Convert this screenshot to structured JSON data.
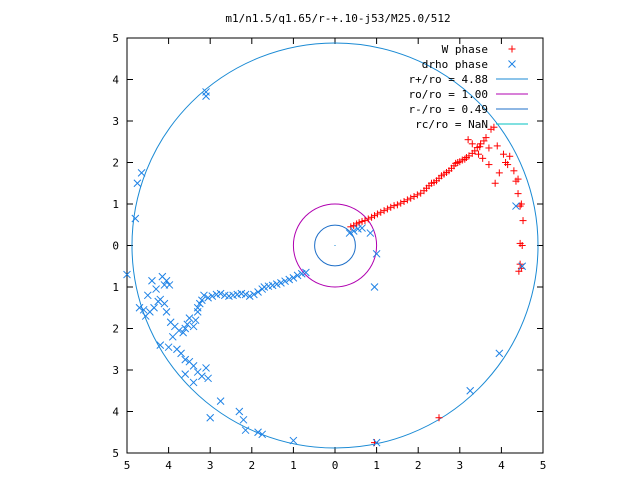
{
  "chart_data": {
    "type": "scatter",
    "title": "m1/n1.5/q1.65/r-+.10-j53/M25.0/512",
    "xlabel": "",
    "ylabel": "",
    "xlim": [
      -5,
      5
    ],
    "ylim": [
      -5,
      5
    ],
    "xtick_values": [
      -5,
      -4,
      -3,
      -2,
      -1,
      0,
      1,
      2,
      3,
      4,
      5
    ],
    "xtick_labels": [
      "5",
      "4",
      "3",
      "2",
      "1",
      "0",
      "1",
      "2",
      "3",
      "4",
      "5"
    ],
    "ytick_values": [
      5,
      4,
      3,
      2,
      1,
      0,
      -1,
      -2,
      -3,
      -4,
      -5
    ],
    "ytick_labels": [
      "5",
      "4",
      "3",
      "2",
      "1",
      "0",
      "1",
      "2",
      "3",
      "4",
      "5"
    ],
    "grid": false,
    "legend_position": "top-right",
    "series": [
      {
        "name": "W phase",
        "marker": "plus",
        "color": "#ff0000",
        "points": [
          [
            0.38,
            0.45
          ],
          [
            0.45,
            0.48
          ],
          [
            0.52,
            0.52
          ],
          [
            0.58,
            0.55
          ],
          [
            0.65,
            0.58
          ],
          [
            0.72,
            0.6
          ],
          [
            0.8,
            0.64
          ],
          [
            0.88,
            0.68
          ],
          [
            0.95,
            0.72
          ],
          [
            1.02,
            0.76
          ],
          [
            1.1,
            0.8
          ],
          [
            1.18,
            0.84
          ],
          [
            1.26,
            0.88
          ],
          [
            1.34,
            0.92
          ],
          [
            1.42,
            0.96
          ],
          [
            1.5,
            0.98
          ],
          [
            1.58,
            1.02
          ],
          [
            1.66,
            1.06
          ],
          [
            1.74,
            1.1
          ],
          [
            1.82,
            1.14
          ],
          [
            1.9,
            1.18
          ],
          [
            1.98,
            1.22
          ],
          [
            2.06,
            1.26
          ],
          [
            2.14,
            1.32
          ],
          [
            2.2,
            1.38
          ],
          [
            2.26,
            1.44
          ],
          [
            2.32,
            1.5
          ],
          [
            2.38,
            1.52
          ],
          [
            2.44,
            1.56
          ],
          [
            2.5,
            1.62
          ],
          [
            2.56,
            1.68
          ],
          [
            2.62,
            1.72
          ],
          [
            2.68,
            1.76
          ],
          [
            2.74,
            1.8
          ],
          [
            2.8,
            1.86
          ],
          [
            2.86,
            1.92
          ],
          [
            2.9,
            1.98
          ],
          [
            2.95,
            2.0
          ],
          [
            3.0,
            2.02
          ],
          [
            3.06,
            2.06
          ],
          [
            3.12,
            2.08
          ],
          [
            3.16,
            2.12
          ],
          [
            3.22,
            2.16
          ],
          [
            3.3,
            2.22
          ],
          [
            3.36,
            2.28
          ],
          [
            3.42,
            2.36
          ],
          [
            3.5,
            2.45
          ],
          [
            3.58,
            2.52
          ],
          [
            3.63,
            2.6
          ],
          [
            3.2,
            2.55
          ],
          [
            3.3,
            2.45
          ],
          [
            3.48,
            2.38
          ],
          [
            3.7,
            2.35
          ],
          [
            3.75,
            2.8
          ],
          [
            3.82,
            2.85
          ],
          [
            3.9,
            2.4
          ],
          [
            4.05,
            2.2
          ],
          [
            4.2,
            2.15
          ],
          [
            4.15,
            1.95
          ],
          [
            4.3,
            1.8
          ],
          [
            4.35,
            1.55
          ],
          [
            4.4,
            1.6
          ],
          [
            4.4,
            1.25
          ],
          [
            4.45,
            0.95
          ],
          [
            4.48,
            1.0
          ],
          [
            4.52,
            0.6
          ],
          [
            4.45,
            0.05
          ],
          [
            4.5,
            0.0
          ],
          [
            4.45,
            -0.45
          ],
          [
            4.48,
            -0.55
          ],
          [
            4.42,
            -0.62
          ],
          [
            3.85,
            1.5
          ],
          [
            3.95,
            1.75
          ],
          [
            4.1,
            2.0
          ],
          [
            3.7,
            1.95
          ],
          [
            3.55,
            2.1
          ],
          [
            3.45,
            2.2
          ],
          [
            2.5,
            -4.15
          ],
          [
            0.95,
            -4.75
          ]
        ]
      },
      {
        "name": "drho phase",
        "marker": "cross",
        "color": "#1e82e6",
        "points": [
          [
            0.35,
            0.3
          ],
          [
            0.45,
            0.35
          ],
          [
            0.55,
            0.4
          ],
          [
            0.65,
            0.42
          ],
          [
            0.85,
            0.3
          ],
          [
            -0.7,
            -0.65
          ],
          [
            -0.8,
            -0.68
          ],
          [
            -0.9,
            -0.72
          ],
          [
            -1.0,
            -0.78
          ],
          [
            -1.1,
            -0.82
          ],
          [
            -1.2,
            -0.86
          ],
          [
            -1.3,
            -0.9
          ],
          [
            -1.4,
            -0.93
          ],
          [
            -1.5,
            -0.96
          ],
          [
            -1.6,
            -0.98
          ],
          [
            -1.7,
            -1.0
          ],
          [
            -1.75,
            -1.05
          ],
          [
            -1.85,
            -1.12
          ],
          [
            -1.95,
            -1.18
          ],
          [
            -2.05,
            -1.22
          ],
          [
            -2.15,
            -1.18
          ],
          [
            -2.25,
            -1.16
          ],
          [
            -2.35,
            -1.18
          ],
          [
            -2.45,
            -1.2
          ],
          [
            -2.55,
            -1.22
          ],
          [
            -2.65,
            -1.2
          ],
          [
            -2.75,
            -1.16
          ],
          [
            -2.85,
            -1.18
          ],
          [
            -2.95,
            -1.22
          ],
          [
            -3.05,
            -1.26
          ],
          [
            -3.15,
            -1.2
          ],
          [
            -3.2,
            -1.32
          ],
          [
            -3.25,
            -1.4
          ],
          [
            -3.3,
            -1.6
          ],
          [
            -3.35,
            -1.8
          ],
          [
            -3.4,
            -1.95
          ],
          [
            -3.3,
            -1.5
          ],
          [
            -3.5,
            -1.75
          ],
          [
            -3.55,
            -1.9
          ],
          [
            -3.6,
            -2.0
          ],
          [
            -3.65,
            -2.1
          ],
          [
            -3.75,
            -2.05
          ],
          [
            -3.85,
            -1.95
          ],
          [
            -3.95,
            -1.85
          ],
          [
            -4.05,
            -1.6
          ],
          [
            -4.1,
            -0.95
          ],
          [
            -4.15,
            -0.75
          ],
          [
            -4.05,
            -0.85
          ],
          [
            -3.98,
            -0.95
          ],
          [
            -4.1,
            -1.4
          ],
          [
            -4.25,
            -1.35
          ],
          [
            -4.35,
            -1.5
          ],
          [
            -4.45,
            -1.6
          ],
          [
            -4.55,
            -1.7
          ],
          [
            -4.6,
            -1.55
          ],
          [
            -4.7,
            -1.5
          ],
          [
            -4.5,
            -1.2
          ],
          [
            -4.4,
            -0.85
          ],
          [
            -4.3,
            -1.05
          ],
          [
            -4.2,
            -1.3
          ],
          [
            -3.9,
            -2.2
          ],
          [
            -3.8,
            -2.5
          ],
          [
            -3.7,
            -2.6
          ],
          [
            -3.6,
            -2.75
          ],
          [
            -3.5,
            -2.8
          ],
          [
            -3.4,
            -2.9
          ],
          [
            -3.3,
            -3.05
          ],
          [
            -3.2,
            -3.15
          ],
          [
            -3.1,
            -2.95
          ],
          [
            -3.05,
            -3.2
          ],
          [
            -3.4,
            -3.3
          ],
          [
            -3.6,
            -3.1
          ],
          [
            -4.0,
            -2.45
          ],
          [
            -4.2,
            -2.4
          ],
          [
            -3.0,
            -4.15
          ],
          [
            -2.75,
            -3.75
          ],
          [
            -2.2,
            -4.2
          ],
          [
            -2.15,
            -4.45
          ],
          [
            -1.85,
            -4.5
          ],
          [
            -1.75,
            -4.55
          ],
          [
            -2.3,
            -4.0
          ],
          [
            -1.0,
            -4.7
          ],
          [
            1.0,
            -4.75
          ],
          [
            3.25,
            -3.5
          ],
          [
            3.95,
            -2.6
          ],
          [
            4.5,
            -0.5
          ],
          [
            4.35,
            0.95
          ],
          [
            0.95,
            -1.0
          ],
          [
            1.0,
            -0.2
          ],
          [
            -4.8,
            0.65
          ],
          [
            -4.75,
            1.5
          ],
          [
            -4.65,
            1.75
          ],
          [
            -3.1,
            3.6
          ],
          [
            -3.1,
            3.7
          ],
          [
            -5.0,
            -0.7
          ]
        ]
      }
    ],
    "circles": [
      {
        "name": "r+/ro = 4.88",
        "radius": 4.88,
        "color": "#1a8ad4"
      },
      {
        "name": "ro/ro = 1.00",
        "radius": 1.0,
        "color": "#b000b0"
      },
      {
        "name": "r-/ro = 0.49",
        "radius": 0.49,
        "color": "#1e6fc8"
      },
      {
        "name": "rc/ro = NaN",
        "radius": null,
        "color": "#00c0c0"
      }
    ]
  }
}
